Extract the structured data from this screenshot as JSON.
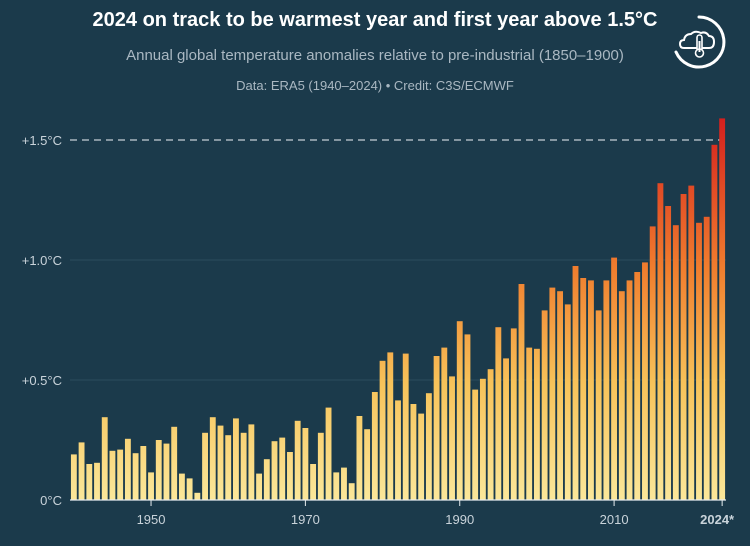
{
  "header": {
    "title": "2024 on track to be warmest year and first year above 1.5°C",
    "subtitle": "Annual global temperature anomalies relative to pre-industrial (1850–1900)",
    "source": "Data: ERA5 (1940–2024)  •  Credit: C3S/ECMWF"
  },
  "chart_data": {
    "type": "bar",
    "title": "2024 on track to be warmest year and first year above 1.5°C",
    "subtitle": "Annual global temperature anomalies relative to pre-industrial (1850–1900)",
    "xlabel": "",
    "ylabel": "",
    "ylim": [
      0,
      1.6
    ],
    "xlim": [
      1940,
      2024
    ],
    "grid": true,
    "reference_line": {
      "value": 1.5,
      "style": "dashed",
      "label": "+1.5°C"
    },
    "y_ticks": [
      {
        "value": 0,
        "label": "0°C"
      },
      {
        "value": 0.5,
        "label": "+0.5°C"
      },
      {
        "value": 1.0,
        "label": "+1.0°C"
      },
      {
        "value": 1.5,
        "label": "+1.5°C"
      }
    ],
    "x_ticks": [
      {
        "value": 1950,
        "label": "1950"
      },
      {
        "value": 1970,
        "label": "1970"
      },
      {
        "value": 1990,
        "label": "1990"
      },
      {
        "value": 2010,
        "label": "2010"
      },
      {
        "value": 2024,
        "label": "2024*",
        "bold": true
      }
    ],
    "colors": {
      "low": "#fbe79a",
      "mid": "#f5a83a",
      "high": "#d41e1e"
    },
    "x": [
      1940,
      1941,
      1942,
      1943,
      1944,
      1945,
      1946,
      1947,
      1948,
      1949,
      1950,
      1951,
      1952,
      1953,
      1954,
      1955,
      1956,
      1957,
      1958,
      1959,
      1960,
      1961,
      1962,
      1963,
      1964,
      1965,
      1966,
      1967,
      1968,
      1969,
      1970,
      1971,
      1972,
      1973,
      1974,
      1975,
      1976,
      1977,
      1978,
      1979,
      1980,
      1981,
      1982,
      1983,
      1984,
      1985,
      1986,
      1987,
      1988,
      1989,
      1990,
      1991,
      1992,
      1993,
      1994,
      1995,
      1996,
      1997,
      1998,
      1999,
      2000,
      2001,
      2002,
      2003,
      2004,
      2005,
      2006,
      2007,
      2008,
      2009,
      2010,
      2011,
      2012,
      2013,
      2014,
      2015,
      2016,
      2017,
      2018,
      2019,
      2020,
      2021,
      2022,
      2023,
      2024
    ],
    "values": [
      0.19,
      0.24,
      0.15,
      0.155,
      0.345,
      0.205,
      0.21,
      0.255,
      0.195,
      0.225,
      0.115,
      0.25,
      0.235,
      0.305,
      0.11,
      0.09,
      0.03,
      0.28,
      0.345,
      0.31,
      0.27,
      0.34,
      0.28,
      0.315,
      0.11,
      0.17,
      0.245,
      0.26,
      0.2,
      0.33,
      0.3,
      0.15,
      0.28,
      0.385,
      0.115,
      0.135,
      0.07,
      0.35,
      0.295,
      0.45,
      0.58,
      0.615,
      0.415,
      0.61,
      0.4,
      0.36,
      0.445,
      0.6,
      0.635,
      0.515,
      0.745,
      0.69,
      0.46,
      0.505,
      0.545,
      0.72,
      0.59,
      0.715,
      0.9,
      0.635,
      0.63,
      0.79,
      0.885,
      0.87,
      0.815,
      0.975,
      0.925,
      0.915,
      0.79,
      0.915,
      1.01,
      0.87,
      0.915,
      0.95,
      0.99,
      1.14,
      1.32,
      1.225,
      1.145,
      1.275,
      1.31,
      1.155,
      1.18,
      1.48,
      1.59
    ]
  }
}
